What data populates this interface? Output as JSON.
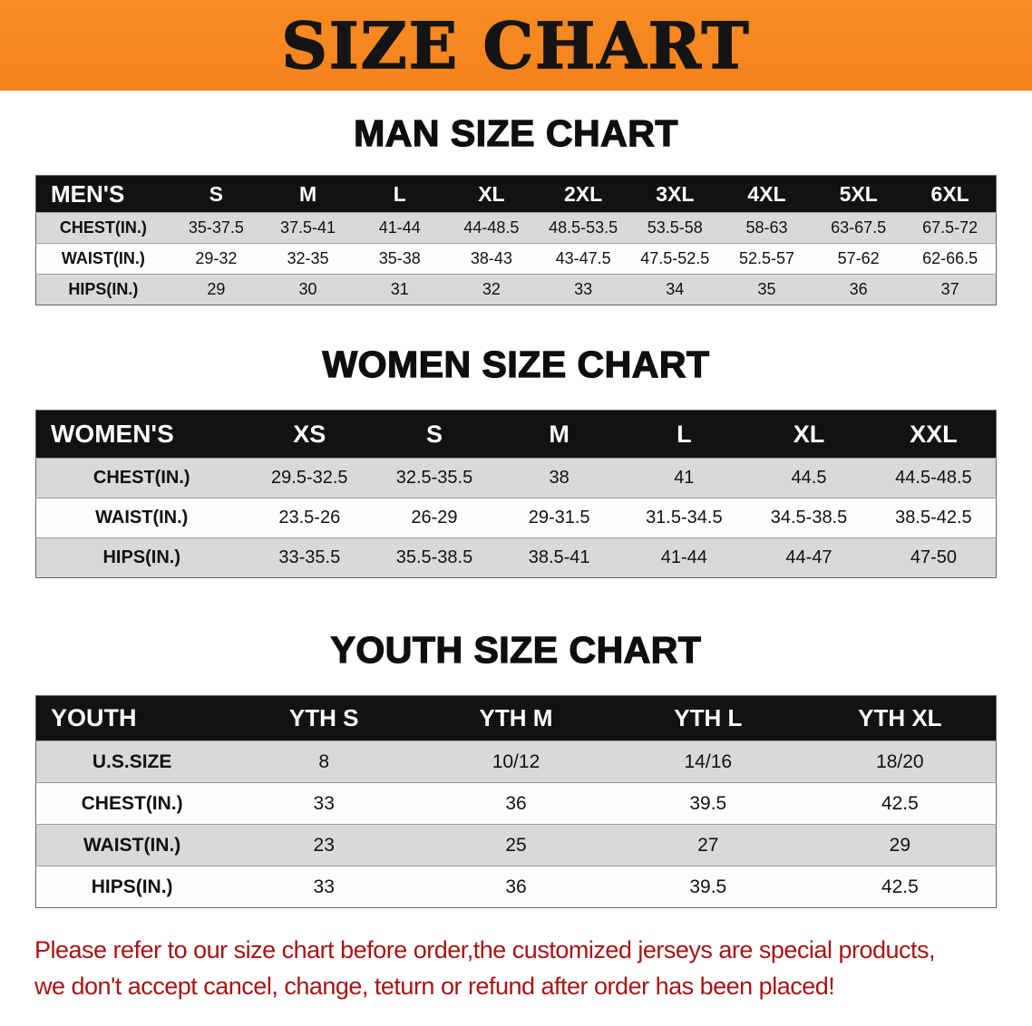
{
  "banner": {
    "title": "SIZE CHART",
    "bg_color": "#f5821e"
  },
  "sections": [
    {
      "id": "men",
      "heading": "MAN SIZE CHART",
      "table": {
        "header": [
          "MEN'S",
          "S",
          "M",
          "L",
          "XL",
          "2XL",
          "3XL",
          "4XL",
          "5XL",
          "6XL"
        ],
        "rows": [
          {
            "label": "CHEST(IN.)",
            "values": [
              "35-37.5",
              "37.5-41",
              "41-44",
              "44-48.5",
              "48.5-53.5",
              "53.5-58",
              "58-63",
              "63-67.5",
              "67.5-72"
            ]
          },
          {
            "label": "WAIST(IN.)",
            "values": [
              "29-32",
              "32-35",
              "35-38",
              "38-43",
              "43-47.5",
              "47.5-52.5",
              "52.5-57",
              "57-62",
              "62-66.5"
            ]
          },
          {
            "label": "HIPS(IN.)",
            "values": [
              "29",
              "30",
              "31",
              "32",
              "33",
              "34",
              "35",
              "36",
              "37"
            ]
          }
        ]
      }
    },
    {
      "id": "women",
      "heading": "WOMEN SIZE CHART",
      "table": {
        "header": [
          "WOMEN'S",
          "XS",
          "S",
          "M",
          "L",
          "XL",
          "XXL"
        ],
        "rows": [
          {
            "label": "CHEST(IN.)",
            "values": [
              "29.5-32.5",
              "32.5-35.5",
              "38",
              "41",
              "44.5",
              "44.5-48.5"
            ]
          },
          {
            "label": "WAIST(IN.)",
            "values": [
              "23.5-26",
              "26-29",
              "29-31.5",
              "31.5-34.5",
              "34.5-38.5",
              "38.5-42.5"
            ]
          },
          {
            "label": "HIPS(IN.)",
            "values": [
              "33-35.5",
              "35.5-38.5",
              "38.5-41",
              "41-44",
              "44-47",
              "47-50"
            ]
          }
        ]
      }
    },
    {
      "id": "youth",
      "heading": "YOUTH SIZE CHART",
      "table": {
        "header": [
          "YOUTH",
          "YTH S",
          "YTH M",
          "YTH L",
          "YTH XL"
        ],
        "rows": [
          {
            "label": "U.S.SIZE",
            "values": [
              "8",
              "10/12",
              "14/16",
              "18/20"
            ]
          },
          {
            "label": "CHEST(IN.)",
            "values": [
              "33",
              "36",
              "39.5",
              "42.5"
            ]
          },
          {
            "label": "WAIST(IN.)",
            "values": [
              "23",
              "25",
              "27",
              "29"
            ]
          },
          {
            "label": "HIPS(IN.)",
            "values": [
              "33",
              "36",
              "39.5",
              "42.5"
            ]
          }
        ]
      }
    }
  ],
  "disclaimer": {
    "color": "#a81414",
    "lines": [
      "Please refer to our size chart before order,the customized jerseys are special products,",
      "we don't accept cancel, change, teturn or refund after order has been placed!"
    ]
  }
}
